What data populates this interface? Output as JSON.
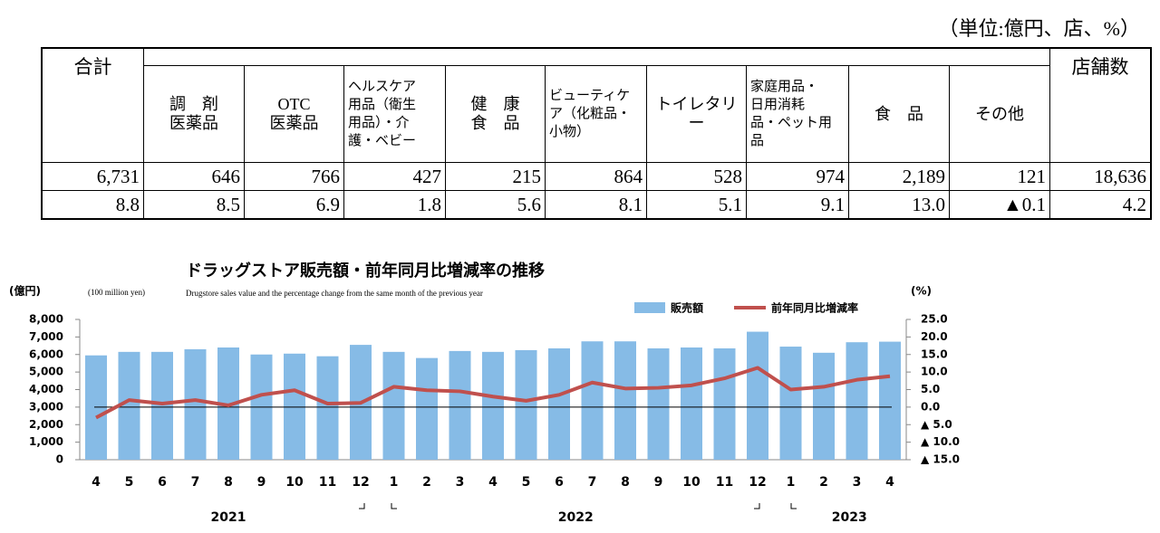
{
  "unit": "（単位:億円、店、%）",
  "table": {
    "headers": [
      [
        "合計"
      ],
      [
        "調　剤",
        "医薬品"
      ],
      [
        "OTC",
        "医薬品"
      ],
      [
        "ヘルスケア",
        "用品（衛生",
        "用品）・介",
        "護・ベビー"
      ],
      [
        "健　康",
        "食　品"
      ],
      [
        "ビューティケ",
        "ア（化粧品・",
        "小物）"
      ],
      [
        "トイレタリー"
      ],
      [
        "家庭用品・",
        "日用消耗",
        "品・ペット用",
        "品"
      ],
      [
        "食　品"
      ],
      [
        "その他"
      ],
      [
        "店舗数"
      ]
    ],
    "rows": [
      [
        "6,731",
        "646",
        "766",
        "427",
        "215",
        "864",
        "528",
        "974",
        "2,189",
        "121",
        "18,636"
      ],
      [
        "8.8",
        "8.5",
        "6.9",
        "1.8",
        "5.6",
        "8.1",
        "5.1",
        "9.1",
        "13.0",
        "▲0.1",
        "4.2"
      ]
    ]
  },
  "chart_data": {
    "type": "bar_line",
    "title": "ドラッグストア販売額・前年同月比増減率の推移",
    "subtitle": "Drugstore sales value and the percentage change from the same month of the previous year",
    "y_label": "(億円)",
    "y_label_en": "(100 million yen)",
    "y2_label": "(%)",
    "categories": [
      "4",
      "5",
      "6",
      "7",
      "8",
      "9",
      "10",
      "11",
      "12",
      "1",
      "2",
      "3",
      "4",
      "5",
      "6",
      "7",
      "8",
      "9",
      "10",
      "11",
      "12",
      "1",
      "2",
      "3",
      "4"
    ],
    "years": [
      "2021",
      "2022",
      "2023"
    ],
    "series": [
      {
        "name": "販売額",
        "color": "#86bbe6",
        "values": [
          5950,
          6150,
          6150,
          6300,
          6400,
          6000,
          6050,
          5900,
          6550,
          6150,
          5800,
          6200,
          6150,
          6250,
          6350,
          6750,
          6750,
          6350,
          6400,
          6350,
          7300,
          6450,
          6100,
          6700,
          6731
        ]
      },
      {
        "name": "前年同月比増減率",
        "color": "#c0504d",
        "axis": "y2",
        "values": [
          -3.0,
          2.0,
          1.0,
          2.0,
          0.5,
          3.5,
          4.8,
          1.0,
          1.2,
          5.8,
          4.8,
          4.5,
          3.0,
          1.8,
          3.5,
          7.0,
          5.3,
          5.5,
          6.2,
          8.2,
          11.2,
          5.0,
          5.8,
          7.8,
          8.8
        ]
      }
    ],
    "ylim": [
      0,
      8000
    ],
    "yticks": [
      0,
      {
        "value": 1000,
        "label": "1,000"
      },
      {
        "value": 2000,
        "label": "2,000"
      },
      {
        "value": 3000,
        "label": "3,000"
      },
      {
        "value": 4000,
        "label": "4,000"
      },
      {
        "value": 5000,
        "label": "5,000"
      },
      {
        "value": 6000,
        "label": "6,000"
      },
      {
        "value": 7000,
        "label": "7,000"
      },
      {
        "value": 8000,
        "label": "8,000"
      }
    ],
    "y2lim": [
      -15,
      25
    ],
    "y2ticks": [
      {
        "value": 25,
        "label": "25.0"
      },
      {
        "value": 20,
        "label": "20.0"
      },
      {
        "value": 15,
        "label": "15.0"
      },
      {
        "value": 10,
        "label": "10.0"
      },
      {
        "value": 5,
        "label": "5.0"
      },
      {
        "value": 0,
        "label": "0.0"
      },
      {
        "value": -5,
        "label": "▲ 5.0"
      },
      {
        "value": -10,
        "label": "▲ 10.0"
      },
      {
        "value": -15,
        "label": "▲ 15.0"
      }
    ]
  }
}
